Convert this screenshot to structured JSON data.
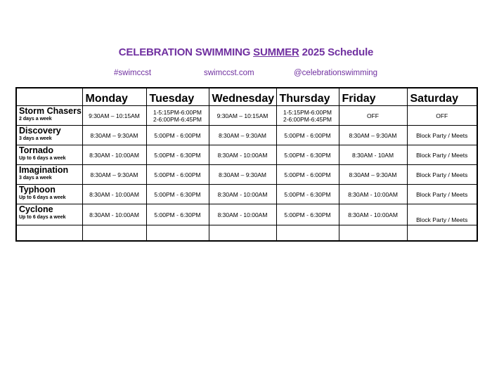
{
  "title": {
    "pre": "CELEBRATION SWIMMING ",
    "underlined": "SUMMER",
    "post": " 2025 Schedule"
  },
  "links": {
    "hashtag": "#swimccst",
    "website": "swimccst.com",
    "handle": "@celebrationswimming"
  },
  "colors": {
    "accent": "#7030a0"
  },
  "days": [
    "Monday",
    "Tuesday",
    "Wednesday",
    "Thursday",
    "Friday",
    "Saturday"
  ],
  "groups": [
    {
      "name": "Storm Chasers",
      "note": "2 days a week",
      "times": [
        "9:30AM – 10:15AM",
        "1-5:15PM-6:00PM\n2-6:00PM-6:45PM",
        "9:30AM – 10:15AM",
        "1-5:15PM-6:00PM\n2-6:00PM-6:45PM",
        "OFF",
        "OFF"
      ]
    },
    {
      "name": "Discovery",
      "note": "3 days a week",
      "times": [
        "8:30AM – 9:30AM",
        "5:00PM - 6:00PM",
        "8:30AM – 9:30AM",
        "5:00PM - 6:00PM",
        "8:30AM – 9:30AM",
        "Block Party / Meets"
      ]
    },
    {
      "name": "Tornado",
      "note": "Up to 6 days a week",
      "times": [
        "8:30AM - 10:00AM",
        "5:00PM - 6:30PM",
        "8:30AM - 10:00AM",
        "5:00PM - 6:30PM",
        "8:30AM - 10AM",
        "Block Party / Meets"
      ]
    },
    {
      "name": "Imagination",
      "note": "3 days a week",
      "times": [
        "8:30AM – 9:30AM",
        "5:00PM - 6:00PM",
        "8:30AM – 9:30AM",
        "5:00PM - 6:00PM",
        "8:30AM – 9:30AM",
        "Block Party / Meets"
      ]
    },
    {
      "name": "Typhoon",
      "note": "Up to 6 days a week",
      "times": [
        "8:30AM - 10:00AM",
        "5:00PM - 6:30PM",
        "8:30AM - 10:00AM",
        "5:00PM - 6:30PM",
        "8:30AM - 10:00AM",
        "Block Party / Meets"
      ]
    },
    {
      "name": "Cyclone",
      "note": "Up to 6 days a week",
      "times": [
        "8:30AM - 10:00AM",
        "5:00PM - 6:30PM",
        "8:30AM - 10:00AM",
        "5:00PM - 6:30PM",
        "8:30AM - 10:00AM",
        "Block Party / Meets"
      ]
    }
  ]
}
